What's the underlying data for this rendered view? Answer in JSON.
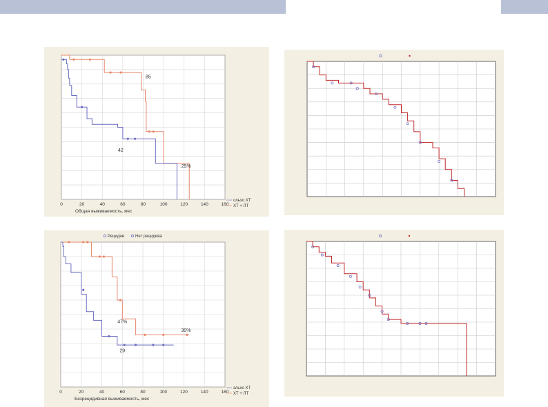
{
  "colors": {
    "header_bar": "#b8c1d6",
    "panel_bg": "#f4efe3",
    "blue_series": "#6a6cc0",
    "orange_series": "#e7876a",
    "red_step": "#c0292b"
  },
  "chart_data": [
    {
      "type": "line",
      "subtype": "kaplan-meier",
      "xlabel": "Общая выживаемость, мес",
      "ylabel": "",
      "x_ticks": [
        "0",
        "20",
        "40",
        "60",
        "80",
        "100",
        "120",
        "140",
        "160"
      ],
      "xlim": [
        0,
        160
      ],
      "ylim": [
        0,
        1
      ],
      "grid": true,
      "legend_entries": [
        "ольхо ХТ",
        "ХТ + ЛТ"
      ],
      "legend_position": "bottom-right",
      "annotations": [
        "85",
        "42",
        "25%"
      ],
      "series": [
        {
          "color": "orange",
          "x": [
            0,
            3,
            5,
            8,
            15,
            25,
            40,
            42,
            60,
            78,
            80,
            82,
            83,
            86,
            100,
            120,
            125
          ],
          "y": [
            1.0,
            1.0,
            1.0,
            0.97,
            0.97,
            0.97,
            0.97,
            0.88,
            0.88,
            0.76,
            0.76,
            0.68,
            0.47,
            0.47,
            0.25,
            0.25,
            0.0
          ],
          "censored_x": [
            12,
            28,
            48,
            58,
            86,
            90
          ],
          "censored_y": [
            0.97,
            0.97,
            0.88,
            0.88,
            0.47,
            0.47
          ]
        },
        {
          "color": "blue",
          "x": [
            0,
            3,
            5,
            6,
            7,
            8,
            10,
            15,
            25,
            30,
            55,
            60,
            92,
            112,
            113
          ],
          "y": [
            0.97,
            0.97,
            0.94,
            0.9,
            0.84,
            0.79,
            0.72,
            0.64,
            0.56,
            0.52,
            0.5,
            0.42,
            0.25,
            0.25,
            0.0
          ],
          "censored_x": [
            2,
            20,
            65,
            72
          ],
          "censored_y": [
            0.97,
            0.64,
            0.42,
            0.42
          ]
        }
      ]
    },
    {
      "type": "line",
      "subtype": "step",
      "title": "",
      "xlim": [
        0,
        30
      ],
      "ylim": [
        0,
        1
      ],
      "grid": true,
      "series": [
        {
          "color": "red",
          "x": [
            0,
            1,
            2,
            3,
            5,
            9,
            10,
            12,
            13,
            15,
            16,
            17,
            18,
            20,
            21,
            22,
            23,
            24,
            25
          ],
          "y": [
            1.0,
            0.96,
            0.9,
            0.86,
            0.84,
            0.8,
            0.76,
            0.72,
            0.68,
            0.62,
            0.56,
            0.48,
            0.4,
            0.36,
            0.28,
            0.2,
            0.12,
            0.06,
            0.0
          ],
          "censored_x": [
            1,
            4,
            7,
            8,
            11,
            14,
            16,
            18,
            21,
            23
          ],
          "censored_y": [
            0.96,
            0.84,
            0.84,
            0.8,
            0.76,
            0.66,
            0.54,
            0.4,
            0.26,
            0.12
          ]
        }
      ]
    },
    {
      "type": "line",
      "subtype": "kaplan-meier",
      "xlabel": "Безрецидивная выживаемость, мес",
      "ylabel": "",
      "x_ticks": [
        "0",
        "20",
        "40",
        "60",
        "80",
        "100",
        "120",
        "140",
        "160"
      ],
      "xlim": [
        0,
        160
      ],
      "ylim": [
        0,
        1
      ],
      "grid": true,
      "legend_top": [
        "Рецидив",
        "Нет рецидива"
      ],
      "legend_entries": [
        "эльхо ХТ",
        "ХТ + ЛТ"
      ],
      "legend_position": "bottom-right",
      "annotations": [
        "47%",
        "30%",
        "29"
      ],
      "series": [
        {
          "color": "orange",
          "x": [
            0,
            1,
            5,
            18,
            30,
            35,
            45,
            50,
            55,
            60,
            73,
            125
          ],
          "y": [
            1.0,
            1.0,
            1.0,
            1.0,
            0.9,
            0.9,
            0.9,
            0.76,
            0.6,
            0.47,
            0.36,
            0.36
          ],
          "censored_x": [
            8,
            22,
            26,
            38,
            42,
            58,
            82,
            100,
            123
          ],
          "censored_y": [
            1.0,
            1.0,
            1.0,
            0.9,
            0.9,
            0.6,
            0.36,
            0.36,
            0.36
          ]
        },
        {
          "color": "blue",
          "x": [
            0,
            2,
            3,
            5,
            8,
            10,
            20,
            25,
            32,
            40,
            55,
            110
          ],
          "y": [
            1.0,
            0.97,
            0.9,
            0.85,
            0.85,
            0.79,
            0.64,
            0.52,
            0.46,
            0.35,
            0.29,
            0.29
          ],
          "censored_x": [
            22,
            47,
            62,
            73,
            90,
            100
          ],
          "censored_y": [
            0.67,
            0.35,
            0.29,
            0.29,
            0.29,
            0.29
          ]
        }
      ]
    },
    {
      "type": "line",
      "subtype": "step",
      "title": "",
      "xlim": [
        0,
        30
      ],
      "ylim": [
        0,
        1
      ],
      "grid": true,
      "series": [
        {
          "color": "red",
          "x": [
            0,
            1,
            2,
            3,
            4,
            6,
            8,
            9,
            10,
            11,
            12,
            13,
            15,
            25,
            25.4
          ],
          "y": [
            1.0,
            0.96,
            0.92,
            0.89,
            0.84,
            0.76,
            0.7,
            0.64,
            0.58,
            0.52,
            0.46,
            0.42,
            0.39,
            0.39,
            0.0
          ],
          "censored_x": [
            1,
            2.5,
            5,
            7,
            8.5,
            10,
            12,
            13,
            16,
            18,
            19
          ],
          "censored_y": [
            0.96,
            0.9,
            0.82,
            0.74,
            0.66,
            0.6,
            0.48,
            0.42,
            0.39,
            0.39,
            0.39
          ]
        }
      ]
    }
  ]
}
